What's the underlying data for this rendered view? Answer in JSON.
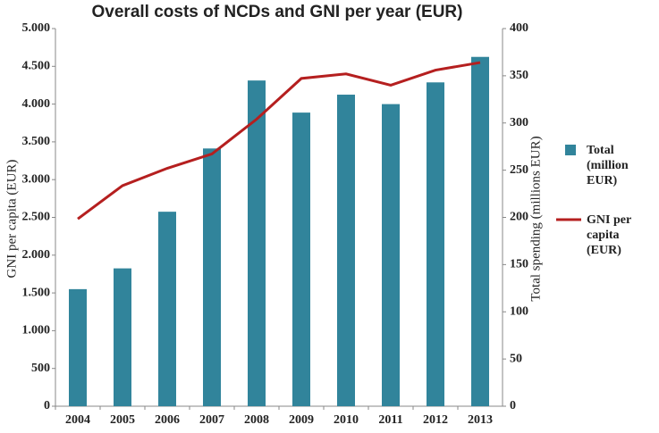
{
  "chart_data": {
    "type": "bar-line",
    "title": "Overall costs of NCDs and GNI per year (EUR)",
    "y_label": "GNI per capita (EUR)",
    "y2_label": "Total spending (millions  EUR)",
    "categories": [
      "2004",
      "2005",
      "2006",
      "2007",
      "2008",
      "2009",
      "2010",
      "2011",
      "2012",
      "2013"
    ],
    "series": [
      {
        "name": "Total (million EUR)",
        "type": "bar",
        "axis": "y2",
        "color": "#31849b",
        "values": [
          124,
          146,
          206,
          273,
          345,
          311,
          330,
          320,
          343,
          370
        ]
      },
      {
        "name": "GNI per capita (EUR)",
        "type": "line",
        "axis": "y",
        "color": "#b51f1f",
        "values": [
          2480,
          2920,
          3150,
          3340,
          3800,
          4340,
          4400,
          4250,
          4450,
          4550
        ]
      }
    ],
    "ylim": [
      0,
      5000
    ],
    "yticks": [
      0,
      500,
      {
        "value": 1000,
        "label": "1.000"
      },
      {
        "value": 1500,
        "label": "1.500"
      },
      {
        "value": 2000,
        "label": "2.000"
      },
      {
        "value": 2500,
        "label": "2.500"
      },
      {
        "value": 3000,
        "label": "3.000"
      },
      {
        "value": 3500,
        "label": "3.500"
      },
      {
        "value": 4000,
        "label": "4.000"
      },
      {
        "value": 4500,
        "label": "4.500"
      },
      {
        "value": 5000,
        "label": "5.000"
      }
    ],
    "y2lim": [
      0,
      400
    ],
    "y2ticks": [
      0,
      50,
      100,
      150,
      200,
      250,
      300,
      350,
      400
    ],
    "legend": "right"
  }
}
